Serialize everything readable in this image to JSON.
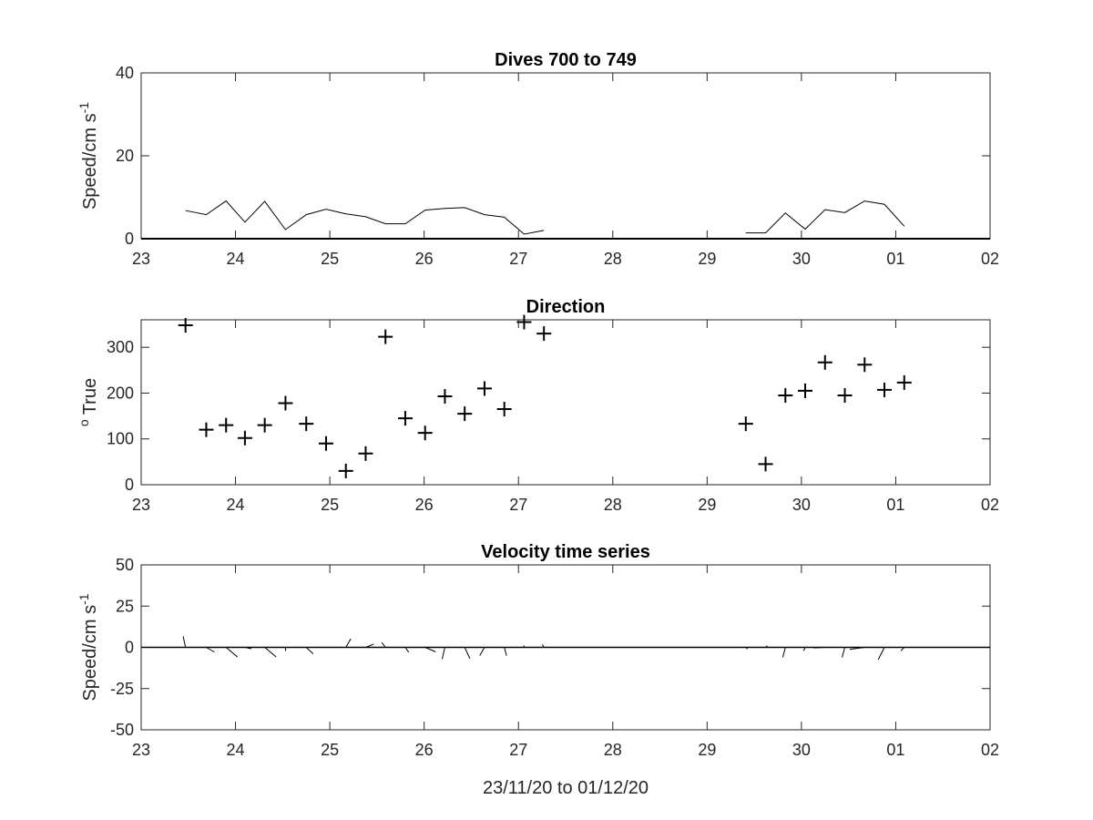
{
  "chart_data": [
    {
      "type": "line",
      "title": "Dives 700 to 749",
      "xlabel": "",
      "ylabel": "Speed/cm s",
      "ylabel_superscript": "-1",
      "xlim": [
        23,
        32
      ],
      "ylim": [
        0,
        40
      ],
      "yticks": [
        0,
        20,
        40
      ],
      "xtick_labels": [
        "23",
        "24",
        "25",
        "26",
        "27",
        "28",
        "29",
        "30",
        "01",
        "02"
      ],
      "series": [
        {
          "x": [
            23.47,
            23.69,
            23.9,
            24.1,
            24.31,
            24.53,
            24.75,
            24.96,
            25.17,
            25.38,
            25.59,
            25.8,
            26.01,
            26.22,
            26.43,
            26.64,
            26.85,
            27.06,
            27.27,
            null,
            29.41,
            29.62,
            29.83,
            30.04,
            30.25,
            30.46,
            30.67,
            30.88,
            31.09
          ],
          "y": [
            6.8,
            5.8,
            9.1,
            4.0,
            9.0,
            2.2,
            5.8,
            7.1,
            6.0,
            5.3,
            3.6,
            3.6,
            6.9,
            7.3,
            7.5,
            5.8,
            5.2,
            1.1,
            2.0,
            null,
            1.4,
            1.4,
            6.2,
            2.3,
            7.0,
            6.3,
            9.1,
            8.3,
            3.0
          ]
        }
      ],
      "baseline": 0
    },
    {
      "type": "scatter",
      "title": "Direction",
      "xlabel": "",
      "ylabel": "True",
      "ylabel_prefix": "o",
      "xlim": [
        23,
        32
      ],
      "ylim": [
        0,
        360
      ],
      "yticks": [
        0,
        100,
        200,
        300
      ],
      "xtick_labels": [
        "23",
        "24",
        "25",
        "26",
        "27",
        "28",
        "29",
        "30",
        "01",
        "02"
      ],
      "marker": "+",
      "series": [
        {
          "x": [
            23.47,
            23.69,
            23.9,
            24.1,
            24.31,
            24.53,
            24.75,
            24.96,
            25.17,
            25.38,
            25.59,
            25.8,
            26.01,
            26.22,
            26.43,
            26.64,
            26.85,
            27.06,
            27.27,
            29.41,
            29.62,
            29.83,
            30.04,
            30.25,
            30.46,
            30.67,
            30.88,
            31.09
          ],
          "y": [
            348,
            120,
            130,
            102,
            130,
            178,
            133,
            90,
            30,
            68,
            323,
            145,
            113,
            193,
            155,
            210,
            165,
            355,
            330,
            133,
            45,
            195,
            205,
            267,
            195,
            262,
            207,
            223
          ]
        }
      ]
    },
    {
      "type": "line",
      "title": "Velocity time series",
      "xlabel": "23/11/20 to 01/12/20",
      "ylabel": "Speed/cm s",
      "ylabel_superscript": "-1",
      "xlim": [
        23,
        32
      ],
      "ylim": [
        -50,
        50
      ],
      "yticks": [
        -50,
        -25,
        0,
        25,
        50
      ],
      "xtick_labels": [
        "23",
        "24",
        "25",
        "26",
        "27",
        "28",
        "29",
        "30",
        "01",
        "02"
      ],
      "stick_plot": true,
      "series": [
        {
          "name": "velocity sticks",
          "x": [
            23.47,
            23.69,
            23.9,
            24.1,
            24.31,
            24.53,
            24.75,
            24.96,
            25.17,
            25.38,
            25.59,
            25.8,
            26.01,
            26.22,
            26.43,
            26.64,
            26.85,
            27.06,
            27.27,
            29.41,
            29.62,
            29.83,
            30.04,
            30.25,
            30.46,
            30.67,
            30.88,
            31.09
          ],
          "direction_deg": [
            348,
            120,
            130,
            102,
            130,
            178,
            133,
            90,
            30,
            68,
            323,
            145,
            113,
            193,
            155,
            210,
            165,
            355,
            330,
            133,
            45,
            195,
            205,
            267,
            195,
            262,
            207,
            223
          ],
          "speed": [
            6.8,
            5.8,
            9.1,
            4.0,
            9.0,
            2.2,
            5.8,
            7.1,
            6.0,
            5.3,
            3.6,
            3.6,
            6.9,
            7.3,
            7.5,
            5.8,
            5.2,
            1.1,
            2.0,
            1.4,
            1.4,
            6.2,
            2.3,
            7.0,
            6.3,
            9.1,
            8.3,
            3.0
          ]
        }
      ],
      "zero_line": true
    }
  ]
}
